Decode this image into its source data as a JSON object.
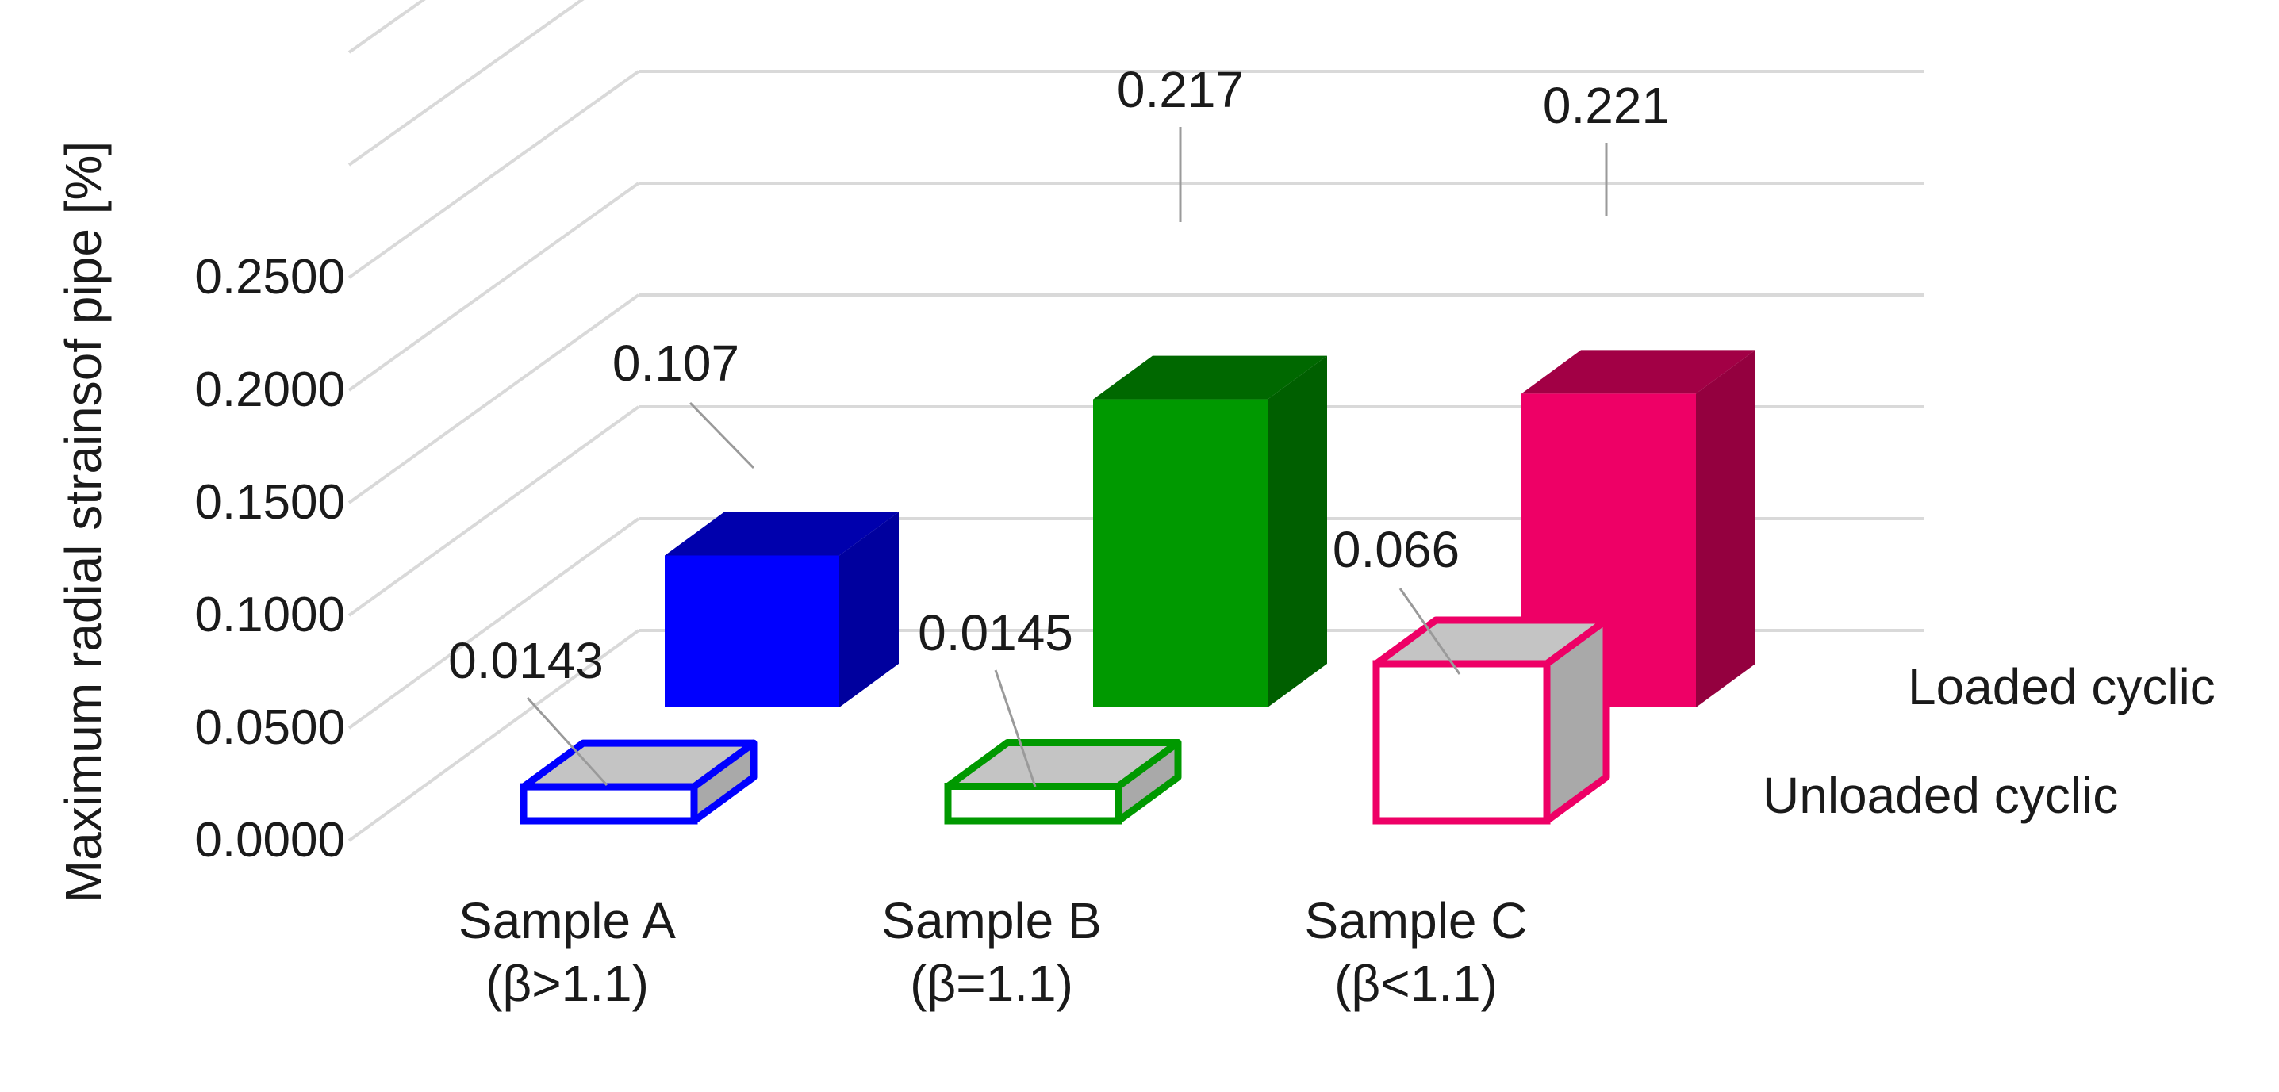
{
  "chart_data": {
    "type": "bar",
    "categories": [
      {
        "line1": "Sample A",
        "line2": "(β>1.1)"
      },
      {
        "line1": "Sample B",
        "line2": "(β=1.1)"
      },
      {
        "line1": "Sample C",
        "line2": "(β<1.1)"
      }
    ],
    "series": [
      {
        "name": "Unloaded cyclic",
        "values": [
          0.0143,
          0.0145,
          0.066
        ],
        "labels": [
          "0.0143",
          "0.0145",
          "0.066"
        ]
      },
      {
        "name": "Loaded cyclic",
        "values": [
          0.107,
          0.217,
          0.221
        ],
        "labels": [
          "0.107",
          "0.217",
          "0.221"
        ]
      }
    ],
    "ylabel": "Maximum  radial strainsof pipe [%]",
    "yticks": [
      "0.0000",
      "0.0500",
      "0.1000",
      "0.1500",
      "0.2000",
      "0.2500"
    ],
    "ylim": [
      0,
      0.25
    ],
    "grid": true,
    "style": "3d-bar",
    "colors": {
      "sample_a": "#0000ff",
      "sample_b": "#009900",
      "sample_c": "#ee0066",
      "unloaded_top": "#c4c4c4",
      "unloaded_side": "#a9a9a9",
      "grid": "#d9d9d9"
    }
  }
}
